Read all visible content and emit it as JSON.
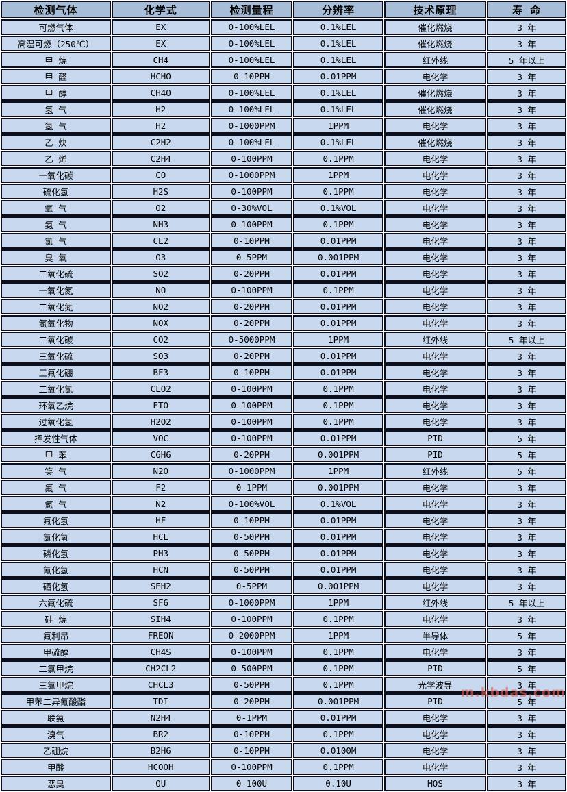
{
  "table": {
    "headers": [
      "检测气体",
      "化学式",
      "检测量程",
      "分辨率",
      "技术原理",
      "寿 命"
    ],
    "rows": [
      [
        "可燃气体",
        "EX",
        "0-100%LEL",
        "0.1%LEL",
        "催化燃烧",
        "3 年"
      ],
      [
        "高温可燃（250℃）",
        "EX",
        "0-100%LEL",
        "0.1%LEL",
        "催化燃烧",
        "3 年"
      ],
      [
        "甲 烷",
        "CH4",
        "0-100%LEL",
        "0.1%LEL",
        "红外线",
        "5 年以上"
      ],
      [
        "甲 醛",
        "HCHO",
        "0-10PPM",
        "0.01PPM",
        "电化学",
        "3 年"
      ],
      [
        "甲 醇",
        "CH4O",
        "0-100%LEL",
        "0.1%LEL",
        "催化燃烧",
        "3 年"
      ],
      [
        "氢 气",
        "H2",
        "0-100%LEL",
        "0.1%LEL",
        "催化燃烧",
        "3 年"
      ],
      [
        "氢 气",
        "H2",
        "0-1000PPM",
        "1PPM",
        "电化学",
        "3 年"
      ],
      [
        "乙 炔",
        "C2H2",
        "0-100%LEL",
        "0.1%LEL",
        "催化燃烧",
        "3 年"
      ],
      [
        "乙 烯",
        "C2H4",
        "0-100PPM",
        "0.1PPM",
        "电化学",
        "3 年"
      ],
      [
        "一氧化碳",
        "CO",
        "0-1000PPM",
        "1PPM",
        "电化学",
        "3 年"
      ],
      [
        "硫化氢",
        "H2S",
        "0-100PPM",
        "0.1PPM",
        "电化学",
        "3 年"
      ],
      [
        "氧 气",
        "O2",
        "0-30%VOL",
        "0.1%VOL",
        "电化学",
        "3 年"
      ],
      [
        "氨 气",
        "NH3",
        "0-100PPM",
        "0.1PPM",
        "电化学",
        "3 年"
      ],
      [
        "氯 气",
        "CL2",
        "0-10PPM",
        "0.01PPM",
        "电化学",
        "3 年"
      ],
      [
        "臭 氧",
        "O3",
        "0-5PPM",
        "0.001PPM",
        "电化学",
        "3 年"
      ],
      [
        "二氧化硫",
        "SO2",
        "0-20PPM",
        "0.01PPM",
        "电化学",
        "3 年"
      ],
      [
        "一氧化氮",
        "NO",
        "0-100PPM",
        "0.1PPM",
        "电化学",
        "3 年"
      ],
      [
        "二氧化氮",
        "NO2",
        "0-20PPM",
        "0.01PPM",
        "电化学",
        "3 年"
      ],
      [
        "氮氧化物",
        "NOX",
        "0-20PPM",
        "0.01PPM",
        "电化学",
        "3 年"
      ],
      [
        "二氧化碳",
        "CO2",
        "0-5000PPM",
        "1PPM",
        "红外线",
        "5 年以上"
      ],
      [
        "三氧化硫",
        "SO3",
        "0-20PPM",
        "0.01PPM",
        "电化学",
        "3 年"
      ],
      [
        "三氟化硼",
        "BF3",
        "0-10PPM",
        "0.01PPM",
        "电化学",
        "3 年"
      ],
      [
        "二氧化氯",
        "CLO2",
        "0-100PPM",
        "0.1PPM",
        "电化学",
        "3 年"
      ],
      [
        "环氧乙烷",
        "ETO",
        "0-100PPM",
        "0.1PPM",
        "电化学",
        "3 年"
      ],
      [
        "过氧化氢",
        "H2O2",
        "0-100PPM",
        "0.1PPM",
        "电化学",
        "3 年"
      ],
      [
        "挥发性气体",
        "VOC",
        "0-100PPM",
        "0.01PPM",
        "PID",
        "5 年"
      ],
      [
        "甲 苯",
        "C6H6",
        "0-20PPM",
        "0.001PPM",
        "PID",
        "5 年"
      ],
      [
        "笑 气",
        "N2O",
        "0-1000PPM",
        "1PPM",
        "红外线",
        "5 年"
      ],
      [
        "氟 气",
        "F2",
        "0-1PPM",
        "0.001PPM",
        "电化学",
        "3 年"
      ],
      [
        "氮 气",
        "N2",
        "0-100%VOL",
        "0.1%VOL",
        "电化学",
        "3 年"
      ],
      [
        "氟化氢",
        "HF",
        "0-10PPM",
        "0.01PPM",
        "电化学",
        "3 年"
      ],
      [
        "氯化氢",
        "HCL",
        "0-50PPM",
        "0.01PPM",
        "电化学",
        "3 年"
      ],
      [
        "磷化氢",
        "PH3",
        "0-50PPM",
        "0.01PPM",
        "电化学",
        "3 年"
      ],
      [
        "氰化氢",
        "HCN",
        "0-50PPM",
        "0.01PPM",
        "电化学",
        "3 年"
      ],
      [
        "硒化氢",
        "SEH2",
        "0-5PPM",
        "0.001PPM",
        "电化学",
        "3 年"
      ],
      [
        "六氟化硫",
        "SF6",
        "0-1000PPM",
        "1PPM",
        "红外线",
        "5 年以上"
      ],
      [
        "硅 烷",
        "SIH4",
        "0-100PPM",
        "0.1PPM",
        "电化学",
        "3 年"
      ],
      [
        "氟利昂",
        "FREON",
        "0-2000PPM",
        "1PPM",
        "半导体",
        "5 年"
      ],
      [
        "甲硫醇",
        "CH4S",
        "0-100PPM",
        "0.1PPM",
        "电化学",
        "3 年"
      ],
      [
        "二氯甲烷",
        "CH2CL2",
        "0-500PPM",
        "0.1PPM",
        "PID",
        "5 年"
      ],
      [
        "三氯甲烷",
        "CHCL3",
        "0-50PPM",
        "0.1PPM",
        "光学波导",
        "3 年"
      ],
      [
        "甲苯二异氰酸酯",
        "TDI",
        "0-20PPM",
        "0.001PPM",
        "PID",
        "5 年"
      ],
      [
        "联氨",
        "N2H4",
        "0-1PPM",
        "0.01PPM",
        "电化学",
        "3 年"
      ],
      [
        "溴气",
        "BR2",
        "0-10PPM",
        "0.1PPM",
        "电化学",
        "3 年"
      ],
      [
        "乙硼烷",
        "B2H6",
        "0-10PPM",
        "0.0100M",
        "电化学",
        "3 年"
      ],
      [
        "甲酸",
        "HCOOH",
        "0-100PPM",
        "0.1PPM",
        "电化学",
        "3 年"
      ],
      [
        "恶臭",
        "OU",
        "0-100U",
        "0.10U",
        "MOS",
        "3 年"
      ]
    ]
  },
  "watermark": "m.kbdas.com",
  "colors": {
    "header_bg": "#a8bed8",
    "row_bg": "#c8d9ef",
    "border": "#0d0d1c",
    "watermark": "#e4665c"
  }
}
